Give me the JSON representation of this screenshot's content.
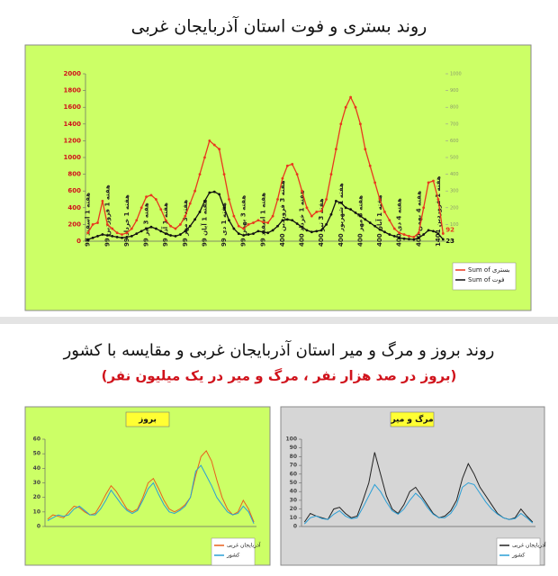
{
  "heading": "روند بروز و مرگ و میر استان آذربایجان غربی و مقایسه با کشور",
  "subheading": "(بروز در صد هزار نفر ، مرگ و میر در یک میلیون نفر)",
  "chart_data": [
    {
      "type": "line",
      "title": "روند بستری و فوت استان آذربایجان غربی",
      "categories": [
        "هفته 1 اسفند 98",
        null,
        null,
        null,
        "هفته 1 فروردین 99",
        null,
        null,
        null,
        "هفته 1 خرداد 99",
        null,
        null,
        null,
        "هفته 3 تیر 99",
        null,
        null,
        null,
        "هفته 1 آذر 99",
        null,
        null,
        null,
        "هفته 3 مهر 99",
        null,
        null,
        null,
        "هفته 1 آبان 99",
        null,
        null,
        null,
        "هفته 1 دی 99",
        null,
        null,
        null,
        "هفته 3 بهمن 99",
        null,
        null,
        null,
        "هفته 1 اسفند 99",
        null,
        null,
        null,
        "هفته 3 فروردین 400",
        null,
        null,
        null,
        "هفته 1 خرداد 400",
        null,
        null,
        null,
        "هفته 3 تیر 400",
        null,
        null,
        null,
        "هفته 1 شهریور 400",
        null,
        null,
        null,
        "هفته 3 مهر 400",
        null,
        null,
        null,
        "هفته 1 آبان 400",
        null,
        null,
        null,
        "هفته 4 دی 400",
        null,
        null,
        null,
        "هفته 4 بهمن 400",
        null,
        null,
        null,
        "هفته 1 فروردین 1401",
        null
      ],
      "series": [
        {
          "name": "Sum of بستری",
          "color": "#e8371e",
          "values": [
            100,
            200,
            220,
            480,
            200,
            150,
            100,
            80,
            100,
            150,
            250,
            400,
            530,
            550,
            500,
            380,
            250,
            180,
            150,
            200,
            300,
            450,
            600,
            800,
            1000,
            1200,
            1150,
            1100,
            800,
            500,
            300,
            180,
            150,
            200,
            220,
            250,
            230,
            220,
            300,
            500,
            750,
            900,
            920,
            800,
            600,
            400,
            300,
            350,
            360,
            500,
            800,
            1100,
            1400,
            1600,
            1720,
            1600,
            1400,
            1100,
            900,
            700,
            500,
            350,
            250,
            150,
            100,
            80,
            60,
            50,
            100,
            400,
            700,
            720,
            500,
            92
          ]
        },
        {
          "name": "Sum of فوت",
          "color": "#111111",
          "values": [
            20,
            40,
            60,
            80,
            70,
            60,
            50,
            40,
            50,
            60,
            90,
            120,
            150,
            170,
            150,
            120,
            90,
            70,
            60,
            80,
            120,
            180,
            260,
            350,
            480,
            580,
            590,
            560,
            400,
            250,
            150,
            90,
            70,
            80,
            90,
            120,
            110,
            100,
            130,
            180,
            250,
            260,
            250,
            210,
            170,
            130,
            110,
            120,
            130,
            200,
            320,
            480,
            460,
            400,
            380,
            340,
            300,
            260,
            220,
            180,
            140,
            110,
            80,
            60,
            40,
            30,
            25,
            20,
            40,
            80,
            130,
            120,
            90,
            23
          ]
        }
      ],
      "ylim": [
        0,
        2000
      ],
      "yticks": [
        0,
        200,
        400,
        600,
        800,
        1000,
        1200,
        1400,
        1600,
        1800,
        2000
      ],
      "y2lim": [
        0,
        1000
      ],
      "y2ticks": [
        0,
        100,
        200,
        300,
        400,
        500,
        600,
        700,
        800,
        900,
        1000
      ],
      "markers": true,
      "panel_color": "#ccff66"
    },
    {
      "type": "line",
      "title": "بروز",
      "series": [
        {
          "name": "آذربایجان غربی",
          "color": "#e8601e",
          "values": [
            5,
            8,
            7,
            6,
            10,
            14,
            13,
            10,
            8,
            9,
            15,
            22,
            28,
            24,
            18,
            12,
            10,
            12,
            20,
            30,
            33,
            26,
            18,
            12,
            10,
            12,
            15,
            20,
            35,
            48,
            52,
            45,
            32,
            20,
            12,
            8,
            10,
            18,
            12,
            3
          ]
        },
        {
          "name": "کشور",
          "color": "#2a9fd6",
          "values": [
            4,
            6,
            8,
            7,
            8,
            12,
            14,
            11,
            8,
            8,
            12,
            18,
            25,
            20,
            15,
            11,
            9,
            11,
            18,
            26,
            30,
            22,
            15,
            10,
            9,
            11,
            14,
            20,
            38,
            42,
            35,
            28,
            20,
            15,
            10,
            8,
            9,
            14,
            10,
            2
          ]
        }
      ],
      "ylim": [
        0,
        60
      ],
      "yticks": [
        0,
        10,
        20,
        30,
        40,
        50,
        60
      ],
      "markers": false,
      "panel_color": "#ccff66"
    },
    {
      "type": "line",
      "title": "مرگ و میر",
      "series": [
        {
          "name": "آذربایجان غربی",
          "color": "#222222",
          "values": [
            5,
            15,
            12,
            10,
            8,
            20,
            22,
            15,
            10,
            12,
            30,
            50,
            85,
            60,
            35,
            20,
            15,
            25,
            40,
            45,
            35,
            25,
            15,
            10,
            12,
            18,
            30,
            55,
            72,
            60,
            45,
            35,
            25,
            15,
            10,
            8,
            10,
            20,
            12,
            5
          ]
        },
        {
          "name": "کشور",
          "color": "#2a9fd6",
          "values": [
            3,
            10,
            12,
            9,
            8,
            14,
            18,
            12,
            9,
            10,
            22,
            35,
            48,
            40,
            28,
            18,
            14,
            20,
            30,
            38,
            32,
            22,
            14,
            10,
            10,
            15,
            25,
            45,
            50,
            48,
            38,
            28,
            20,
            14,
            10,
            8,
            9,
            15,
            10,
            4
          ]
        }
      ],
      "ylim": [
        0,
        100
      ],
      "yticks": [
        0,
        10,
        20,
        30,
        40,
        50,
        60,
        70,
        80,
        90,
        100
      ],
      "markers": false,
      "panel_color": "#d6d6d6"
    }
  ]
}
